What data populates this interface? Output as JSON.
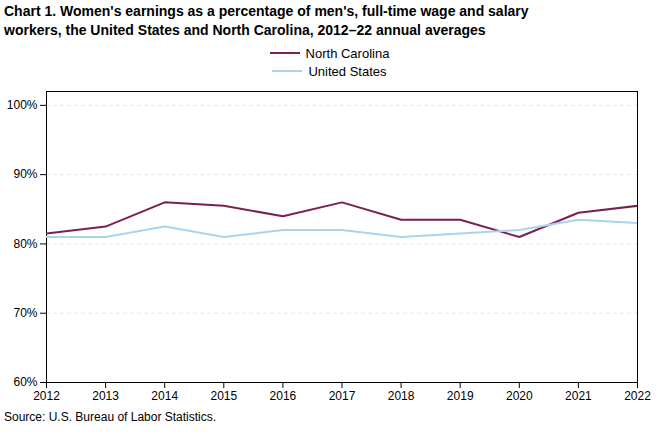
{
  "chart_data": {
    "type": "line",
    "title": "Chart 1. Women's earnings as a percentage of men's, full-time wage and salary\nworkers, the United States and North Carolina, 2012–22 annual averages",
    "caption": "Source:  U.S. Bureau of Labor Statistics.",
    "x": [
      2012,
      2013,
      2014,
      2015,
      2016,
      2017,
      2018,
      2019,
      2020,
      2021,
      2022
    ],
    "series": [
      {
        "name": "North Carolina",
        "color": "#7b2150",
        "values": [
          81.5,
          82.5,
          86.0,
          85.5,
          84.0,
          86.0,
          83.5,
          83.5,
          81.0,
          84.5,
          85.5
        ]
      },
      {
        "name": "United States",
        "color": "#aad3f0",
        "values": [
          81.0,
          81.0,
          82.5,
          81.0,
          82.0,
          82.0,
          81.0,
          81.5,
          82.0,
          83.5,
          83.0
        ]
      }
    ],
    "xlim": [
      2012,
      2022
    ],
    "xticks": [
      2012,
      2013,
      2014,
      2015,
      2016,
      2017,
      2018,
      2019,
      2020,
      2021,
      2022
    ],
    "ylim": [
      60,
      102
    ],
    "yticks": [
      {
        "value": 60,
        "label": "60%"
      },
      {
        "value": 70,
        "label": "70%"
      },
      {
        "value": 80,
        "label": "80%"
      },
      {
        "value": 90,
        "label": "90%"
      },
      {
        "value": 100,
        "label": "100%"
      }
    ],
    "grid": true,
    "legend": "top"
  }
}
